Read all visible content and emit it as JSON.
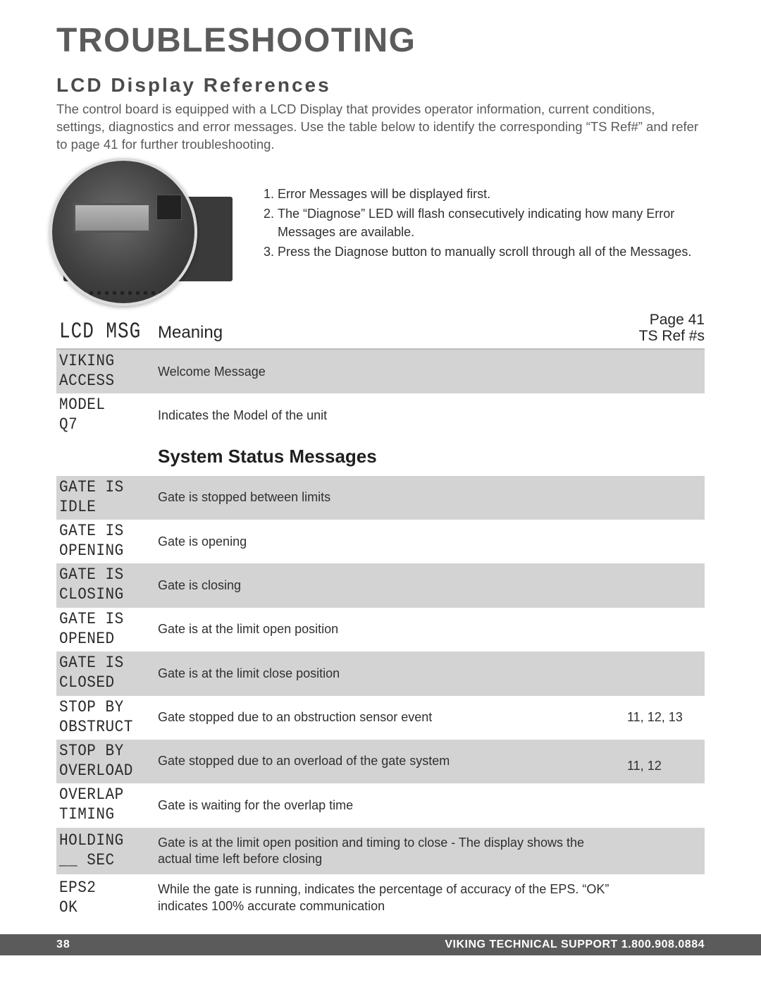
{
  "title": "TROUBLESHOOTING",
  "subtitle": "LCD Display References",
  "intro": "The control board is equipped with a LCD Display that provides operator information, current conditions, settings, diagnostics and error messages. Use the table below to identify the corresponding “TS Ref#” and refer to page 41 for further troubleshooting.",
  "instructions": [
    "Error Messages will be displayed first.",
    "The “Diagnose” LED will flash consecutively indicating how many Error Messages are available.",
    "Press the Diagnose button to manually scroll through all of the Messages."
  ],
  "table": {
    "headers": {
      "msg": "LCD MSG",
      "meaning": "Meaning",
      "ref_line1": "Page 41",
      "ref_line2": "TS Ref #s"
    },
    "section_heading": "System Status Messages",
    "colors": {
      "row_shade": "#d3d3d3",
      "row_plain": "#ffffff",
      "heading_gray": "#5b5b5b"
    },
    "rows": [
      {
        "msg": "VIKING\nACCESS",
        "meaning": "Welcome Message",
        "ref": "",
        "shaded": true
      },
      {
        "msg": "MODEL\nQ7",
        "meaning": "Indicates the Model of the unit",
        "ref": "",
        "shaded": false
      },
      {
        "msg": "",
        "meaning": "__SECTION__",
        "ref": "",
        "shaded": false
      },
      {
        "msg": "GATE IS\nIDLE",
        "meaning": "Gate is stopped between limits",
        "ref": "",
        "shaded": true
      },
      {
        "msg": "GATE IS\nOPENING",
        "meaning": "Gate is opening",
        "ref": "",
        "shaded": false
      },
      {
        "msg": "GATE IS\nCLOSING",
        "meaning": "Gate is closing",
        "ref": "",
        "shaded": true
      },
      {
        "msg": "GATE IS\nOPENED",
        "meaning": "Gate is at the limit open position",
        "ref": "",
        "shaded": false
      },
      {
        "msg": "GATE IS\nCLOSED",
        "meaning": "Gate is at the limit close position",
        "ref": "",
        "shaded": true
      },
      {
        "msg": "STOP BY\nOBSTRUCT",
        "meaning": "Gate stopped due to an obstruction sensor event",
        "ref": "11, 12, 13",
        "shaded": false
      },
      {
        "msg": "STOP BY\nOVERLOAD",
        "meaning": "Gate stopped due to an overload of the gate system",
        "ref": "11, 12",
        "shaded": true,
        "ref_bottom": true
      },
      {
        "msg": "OVERLAP\nTIMING",
        "meaning": "Gate is waiting for the overlap time",
        "ref": "",
        "shaded": false
      },
      {
        "msg": "HOLDING\n__ SEC",
        "meaning": "Gate is at the limit open position and timing to close - The display shows the actual time left before closing",
        "ref": "",
        "shaded": true
      },
      {
        "msg": "EPS2\nOK",
        "meaning": "While the gate is running, indicates the percentage of accuracy of the EPS. “OK” indicates 100% accurate communication",
        "ref": "",
        "shaded": false
      }
    ]
  },
  "footer": {
    "page": "38",
    "support": "VIKING TECHNICAL SUPPORT 1.800.908.0884"
  }
}
